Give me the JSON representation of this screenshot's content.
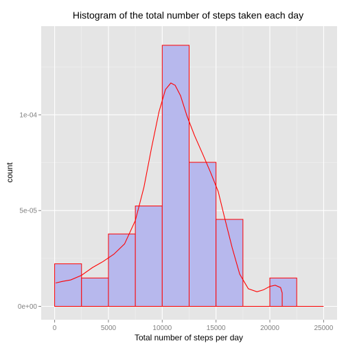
{
  "chart_data": {
    "type": "bar",
    "title": "Histogram of the total number of steps taken each day",
    "xlabel": "Total number of steps per day",
    "ylabel": "count",
    "xlim": [
      -1250,
      26250
    ],
    "ylim": [
      -7e-06,
      0.0001463
    ],
    "x_ticks": [
      0,
      5000,
      10000,
      15000,
      20000,
      25000
    ],
    "x_tick_labels": [
      "0",
      "5000",
      "10000",
      "15000",
      "20000",
      "25000"
    ],
    "y_ticks": [
      0,
      5e-05,
      0.0001
    ],
    "y_tick_labels": [
      "0e+00",
      "5e-05",
      "1e-04"
    ],
    "grid": true,
    "bins": [
      {
        "x0": 0,
        "x1": 2500,
        "value": 2.22e-05
      },
      {
        "x0": 2500,
        "x1": 5000,
        "value": 1.48e-05
      },
      {
        "x0": 5000,
        "x1": 7500,
        "value": 3.78e-05
      },
      {
        "x0": 7500,
        "x1": 10000,
        "value": 5.24e-05
      },
      {
        "x0": 10000,
        "x1": 12500,
        "value": 0.0001363
      },
      {
        "x0": 12500,
        "x1": 15000,
        "value": 7.52e-05
      },
      {
        "x0": 15000,
        "x1": 17500,
        "value": 4.54e-05
      },
      {
        "x0": 17500,
        "x1": 20000,
        "value": 0
      },
      {
        "x0": 20000,
        "x1": 22500,
        "value": 1.48e-05
      },
      {
        "x0": 22500,
        "x1": 25000,
        "value": 0
      }
    ],
    "density": {
      "x": [
        100,
        700,
        1500,
        2500,
        3500,
        4500,
        5500,
        6500,
        7500,
        8300,
        9000,
        9700,
        10300,
        10800,
        11200,
        11700,
        12300,
        13000,
        13800,
        14500,
        15200,
        15800,
        16500,
        17200,
        18000,
        18800,
        19400,
        20000,
        20500,
        21000,
        21150,
        21150
      ],
      "y": [
        1.22e-05,
        1.3e-05,
        1.38e-05,
        1.62e-05,
        2.02e-05,
        2.34e-05,
        2.72e-05,
        3.26e-05,
        4.48e-05,
        6.22e-05,
        8.26e-05,
        0.0001016,
        0.0001132,
        0.0001166,
        0.0001154,
        0.00011,
        9.94e-05,
        8.92e-05,
        7.9e-05,
        6.98e-05,
        6e-05,
        4.62e-05,
        3.06e-05,
        1.68e-05,
        9.2e-06,
        7.6e-06,
        8.6e-06,
        1.04e-05,
        1.1e-05,
        9.8e-06,
        7e-06,
        0
      ]
    },
    "colors": {
      "panel": "#e5e5e5",
      "grid_major": "#ffffff",
      "grid_minor": "#f2f2f2",
      "bar_fill": "#b7b8ed",
      "bar_stroke": "#ff0000",
      "density_line": "#ff0000",
      "text": "#000000",
      "tick_text": "#7f7f7f",
      "tick_mark": "#7f7f7f"
    }
  }
}
